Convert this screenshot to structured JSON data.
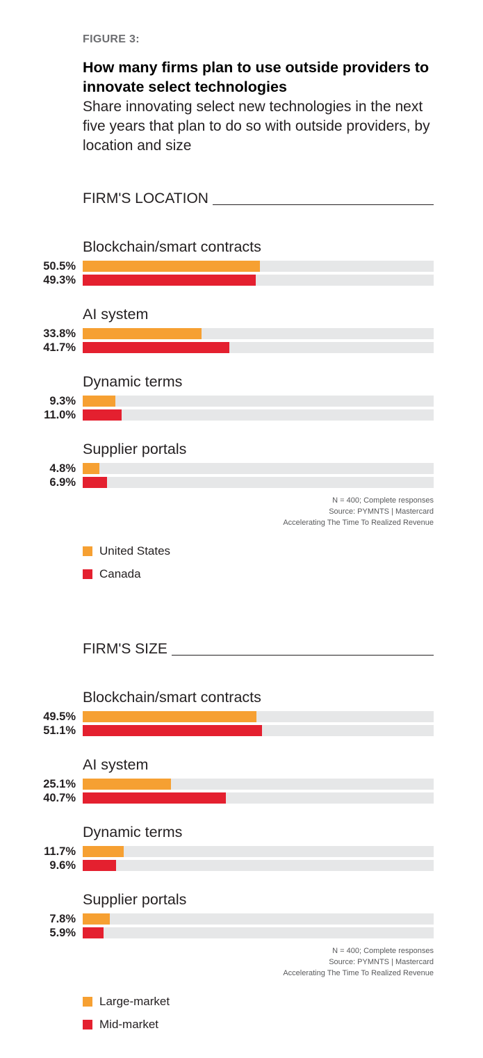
{
  "figure_label": "FIGURE 3:",
  "title": "How many firms plan to use outside providers to innovate select technologies",
  "subtitle": "Share innovating select new technologies in the next five years that plan to do so with outside providers, by location and size",
  "colors": {
    "series1": "#f6a032",
    "series2": "#e4202f",
    "track": "#e6e7e8"
  },
  "chart_data": [
    {
      "type": "bar",
      "orientation": "horizontal",
      "title": "FIRM'S LOCATION",
      "categories": [
        "Blockchain/smart contracts",
        "AI system",
        "Dynamic terms",
        "Supplier portals"
      ],
      "series": [
        {
          "name": "United States",
          "values": [
            50.5,
            33.8,
            9.3,
            4.8
          ],
          "labels": [
            "50.5%",
            "33.8%",
            "9.3%",
            "4.8%"
          ]
        },
        {
          "name": "Canada",
          "values": [
            49.3,
            41.7,
            11.0,
            6.9
          ],
          "labels": [
            "49.3%",
            "41.7%",
            "11.0%",
            "6.9%"
          ]
        }
      ],
      "xlim": [
        0,
        100
      ],
      "notes": [
        "N = 400; Complete responses",
        "Source: PYMNTS  |  Mastercard",
        "Accelerating The Time To Realized Revenue"
      ]
    },
    {
      "type": "bar",
      "orientation": "horizontal",
      "title": "FIRM'S SIZE",
      "categories": [
        "Blockchain/smart contracts",
        "AI system",
        "Dynamic terms",
        "Supplier portals"
      ],
      "series": [
        {
          "name": "Large-market",
          "values": [
            49.5,
            25.1,
            11.7,
            7.8
          ],
          "labels": [
            "49.5%",
            "25.1%",
            "11.7%",
            "7.8%"
          ]
        },
        {
          "name": "Mid-market",
          "values": [
            51.1,
            40.7,
            9.6,
            5.9
          ],
          "labels": [
            "51.1%",
            "40.7%",
            "9.6%",
            "5.9%"
          ]
        }
      ],
      "xlim": [
        0,
        100
      ],
      "notes": [
        "N = 400; Complete responses",
        "Source: PYMNTS  |  Mastercard",
        "Accelerating The Time To Realized Revenue"
      ]
    }
  ]
}
